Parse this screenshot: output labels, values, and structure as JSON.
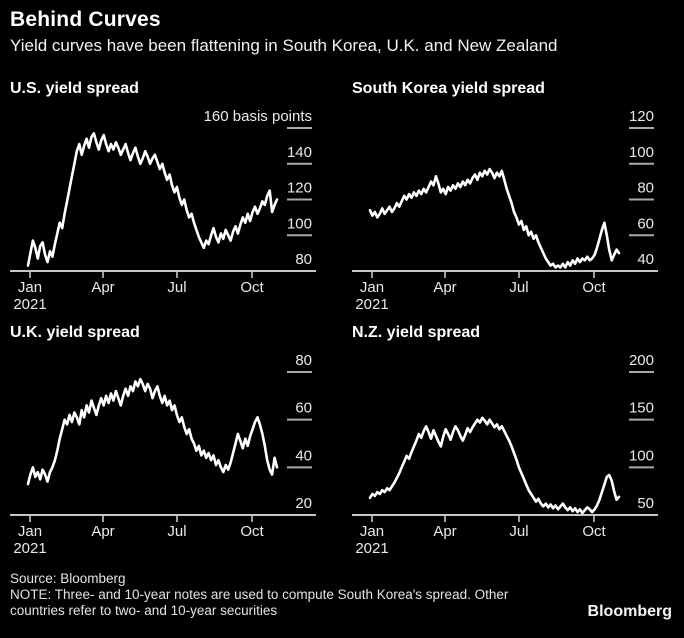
{
  "header": {
    "title": "Behind Curves",
    "subtitle": "Yield curves have been flattening in South Korea, U.K. and New Zealand"
  },
  "footer": {
    "source": "Source: Bloomberg",
    "note_line1": "NOTE: Three- and 10-year notes are used to compute South Korea's spread. Other",
    "note_line2": "countries refer to two- and 10-year securities",
    "brand": "Bloomberg"
  },
  "colors": {
    "background": "#000000",
    "series_line": "#ffffff",
    "axis_line": "#c6c6c6",
    "tick_dash": "#a9a9a9",
    "tick_label": "#e9e9e9"
  },
  "chart_data": [
    {
      "type": "line",
      "title": "U.S. yield spread",
      "unit": "basis points",
      "x_tick_labels": [
        "Jan",
        "Apr",
        "Jul",
        "Oct"
      ],
      "x_first_tick_year": "2021",
      "y_tick_values": [
        160,
        140,
        120,
        100,
        80
      ],
      "y_tick_labels": [
        "160 basis points",
        "140",
        "120",
        "100",
        "80"
      ],
      "ylim": [
        80,
        160
      ],
      "grid": false,
      "values": [
        83,
        90,
        97,
        93,
        87,
        94,
        96,
        89,
        85,
        91,
        88,
        95,
        101,
        107,
        104,
        112,
        119,
        126,
        133,
        140,
        147,
        151,
        145,
        150,
        154,
        149,
        155,
        157,
        152,
        148,
        153,
        156,
        151,
        147,
        151,
        148,
        152,
        149,
        145,
        148,
        151,
        146,
        142,
        146,
        149,
        144,
        140,
        143,
        147,
        144,
        140,
        143,
        145,
        141,
        137,
        140,
        135,
        131,
        134,
        128,
        124,
        127,
        121,
        117,
        120,
        114,
        110,
        112,
        107,
        103,
        99,
        96,
        93,
        97,
        95,
        100,
        104,
        99,
        96,
        101,
        98,
        103,
        100,
        97,
        102,
        105,
        101,
        106,
        110,
        107,
        112,
        108,
        113,
        116,
        112,
        115,
        119,
        117,
        122,
        125,
        113,
        117,
        120
      ]
    },
    {
      "type": "line",
      "title": "South Korea yield spread",
      "unit": "basis points",
      "x_tick_labels": [
        "Jan",
        "Apr",
        "Jul",
        "Oct"
      ],
      "x_first_tick_year": "2021",
      "y_tick_values": [
        120,
        100,
        80,
        60,
        40
      ],
      "y_tick_labels": [
        "120",
        "100",
        "80",
        "60",
        "40"
      ],
      "ylim": [
        40,
        120
      ],
      "grid": false,
      "values": [
        74,
        71,
        73,
        70,
        72,
        75,
        72,
        74,
        76,
        73,
        75,
        78,
        76,
        79,
        82,
        80,
        83,
        81,
        84,
        82,
        85,
        83,
        86,
        84,
        87,
        90,
        88,
        93,
        89,
        84,
        86,
        83,
        87,
        85,
        88,
        86,
        89,
        87,
        90,
        88,
        91,
        89,
        92,
        94,
        91,
        95,
        93,
        96,
        94,
        97,
        95,
        92,
        95,
        93,
        96,
        91,
        86,
        82,
        78,
        73,
        70,
        66,
        68,
        63,
        65,
        60,
        62,
        58,
        60,
        56,
        53,
        50,
        47,
        45,
        43,
        44,
        42,
        43,
        42,
        44,
        42,
        45,
        43,
        46,
        44,
        47,
        45,
        47,
        46,
        48,
        46,
        47,
        49,
        53,
        58,
        63,
        67,
        60,
        52,
        46,
        49,
        52,
        50
      ]
    },
    {
      "type": "line",
      "title": "U.K. yield spread",
      "unit": "basis points",
      "x_tick_labels": [
        "Jan",
        "Apr",
        "Jul",
        "Oct"
      ],
      "x_first_tick_year": "2021",
      "y_tick_values": [
        80,
        60,
        40,
        20
      ],
      "y_tick_labels": [
        "80",
        "60",
        "40",
        "20"
      ],
      "ylim": [
        20,
        80
      ],
      "grid": false,
      "values": [
        33,
        37,
        40,
        36,
        38,
        35,
        39,
        37,
        34,
        38,
        40,
        43,
        47,
        52,
        56,
        60,
        58,
        62,
        59,
        63,
        61,
        58,
        64,
        61,
        66,
        63,
        68,
        65,
        62,
        66,
        69,
        66,
        70,
        67,
        71,
        68,
        72,
        69,
        66,
        70,
        73,
        70,
        74,
        72,
        76,
        74,
        77,
        75,
        72,
        75,
        73,
        69,
        72,
        74,
        70,
        67,
        70,
        66,
        68,
        64,
        66,
        62,
        59,
        61,
        57,
        54,
        56,
        52,
        50,
        47,
        49,
        45,
        47,
        44,
        46,
        43,
        45,
        41,
        43,
        40,
        38,
        41,
        39,
        42,
        46,
        50,
        54,
        51,
        48,
        52,
        49,
        53,
        56,
        59,
        61,
        58,
        54,
        49,
        43,
        39,
        37,
        44,
        40
      ]
    },
    {
      "type": "line",
      "title": "N.Z. yield spread",
      "unit": "basis points",
      "x_tick_labels": [
        "Jan",
        "Apr",
        "Jul",
        "Oct"
      ],
      "x_first_tick_year": "2021",
      "y_tick_values": [
        200,
        150,
        100,
        50
      ],
      "y_tick_labels": [
        "200",
        "150",
        "100",
        "50"
      ],
      "ylim": [
        50,
        200
      ],
      "grid": false,
      "values": [
        68,
        72,
        70,
        74,
        72,
        76,
        74,
        78,
        76,
        80,
        84,
        89,
        94,
        100,
        106,
        112,
        109,
        116,
        122,
        128,
        135,
        131,
        138,
        143,
        137,
        130,
        139,
        133,
        127,
        122,
        132,
        140,
        135,
        129,
        137,
        143,
        139,
        133,
        128,
        134,
        141,
        137,
        142,
        146,
        150,
        147,
        152,
        149,
        145,
        150,
        146,
        142,
        145,
        140,
        143,
        138,
        133,
        128,
        122,
        115,
        108,
        100,
        94,
        88,
        82,
        76,
        72,
        68,
        64,
        67,
        62,
        59,
        62,
        58,
        61,
        57,
        60,
        56,
        59,
        62,
        58,
        55,
        58,
        54,
        57,
        53,
        56,
        52,
        55,
        58,
        56,
        53,
        56,
        60,
        66,
        74,
        82,
        90,
        92,
        86,
        75,
        66,
        69
      ]
    }
  ]
}
